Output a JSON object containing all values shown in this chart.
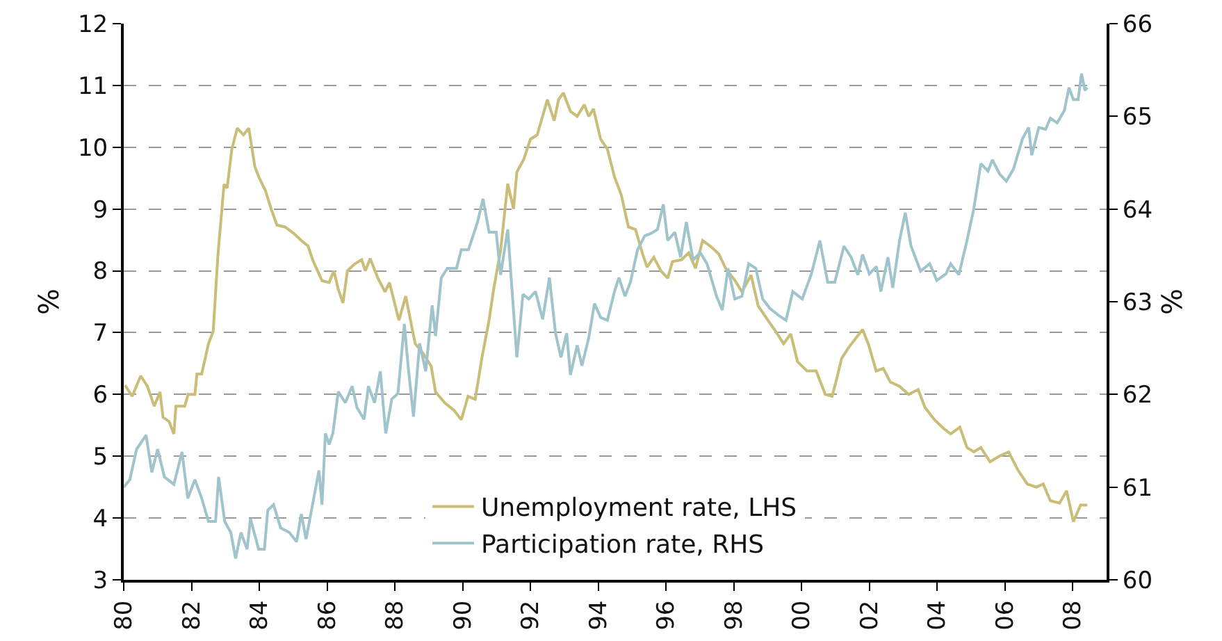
{
  "chart_data": {
    "type": "line",
    "ylabel": "%",
    "y2label": "%",
    "xlim": [
      1980,
      2009
    ],
    "xticks": [
      {
        "value": 1980,
        "label": "80"
      },
      {
        "value": 1982,
        "label": "82"
      },
      {
        "value": 1984,
        "label": "84"
      },
      {
        "value": 1986,
        "label": "86"
      },
      {
        "value": 1988,
        "label": "88"
      },
      {
        "value": 1990,
        "label": "90"
      },
      {
        "value": 1992,
        "label": "92"
      },
      {
        "value": 1994,
        "label": "94"
      },
      {
        "value": 1996,
        "label": "96"
      },
      {
        "value": 1998,
        "label": "98"
      },
      {
        "value": 2000,
        "label": "00"
      },
      {
        "value": 2002,
        "label": "02"
      },
      {
        "value": 2004,
        "label": "04"
      },
      {
        "value": 2006,
        "label": "06"
      },
      {
        "value": 2008,
        "label": "08"
      }
    ],
    "ylim": [
      3,
      12
    ],
    "yticks": [
      3,
      4,
      5,
      6,
      7,
      8,
      9,
      10,
      11,
      12
    ],
    "y2lim": [
      60,
      66
    ],
    "y2ticks": [
      60,
      61,
      62,
      63,
      64,
      65,
      66
    ],
    "grid": "y",
    "legend": "bottom",
    "marker": "none",
    "line_style": "solid",
    "series": [
      {
        "name": "Unemployment rate, LHS",
        "color": "#c9bd78",
        "x": [
          1980.04,
          1980.25,
          1980.5,
          1980.7,
          1980.9,
          1981.07,
          1981.16,
          1981.34,
          1981.48,
          1981.54,
          1981.8,
          1981.9,
          1982.1,
          1982.16,
          1982.3,
          1982.5,
          1982.64,
          1982.78,
          1982.96,
          1983.05,
          1983.19,
          1983.35,
          1983.53,
          1983.69,
          1983.87,
          1984.0,
          1984.18,
          1984.35,
          1984.52,
          1984.76,
          1985.03,
          1985.24,
          1985.44,
          1985.58,
          1985.85,
          1986.06,
          1986.2,
          1986.33,
          1986.47,
          1986.6,
          1986.81,
          1987.02,
          1987.13,
          1987.27,
          1987.5,
          1987.71,
          1987.84,
          1988.12,
          1988.32,
          1988.46,
          1988.6,
          1988.8,
          1989.07,
          1989.2,
          1989.48,
          1989.75,
          1989.96,
          1990.16,
          1990.37,
          1990.57,
          1990.78,
          1990.92,
          1991.12,
          1991.33,
          1991.5,
          1991.6,
          1991.8,
          1992.0,
          1992.2,
          1992.5,
          1992.7,
          1992.83,
          1992.97,
          1993.18,
          1993.38,
          1993.59,
          1993.72,
          1993.86,
          1994.07,
          1994.27,
          1994.48,
          1994.68,
          1994.89,
          1995.1,
          1995.3,
          1995.44,
          1995.64,
          1995.85,
          1996.05,
          1996.19,
          1996.46,
          1996.67,
          1996.87,
          1997.08,
          1997.35,
          1997.56,
          1997.76,
          1998.04,
          1998.24,
          1998.51,
          1998.72,
          1998.92,
          1999.2,
          1999.47,
          1999.68,
          1999.88,
          2000.16,
          2000.43,
          2000.7,
          2000.9,
          2001.04,
          2001.18,
          2001.39,
          2001.6,
          2001.8,
          2001.98,
          2002.2,
          2002.41,
          2002.62,
          2002.89,
          2003.16,
          2003.44,
          2003.64,
          2003.92,
          2004.19,
          2004.4,
          2004.67,
          2004.88,
          2005.08,
          2005.29,
          2005.56,
          2005.83,
          2006.11,
          2006.38,
          2006.66,
          2006.93,
          2007.13,
          2007.34,
          2007.61,
          2007.82,
          2008.02,
          2008.23,
          2008.43
        ],
        "values": [
          6.15,
          5.97,
          6.3,
          6.13,
          5.81,
          6.04,
          5.63,
          5.56,
          5.36,
          5.81,
          5.81,
          6.0,
          6.0,
          6.33,
          6.33,
          6.82,
          7.02,
          8.26,
          9.4,
          9.34,
          9.97,
          10.31,
          10.2,
          10.31,
          9.68,
          9.5,
          9.3,
          9.0,
          8.74,
          8.71,
          8.6,
          8.49,
          8.4,
          8.17,
          7.84,
          7.81,
          8.0,
          7.7,
          7.48,
          8.0,
          8.11,
          8.18,
          8.0,
          8.2,
          7.88,
          7.66,
          7.81,
          7.2,
          7.59,
          7.2,
          6.82,
          6.69,
          6.46,
          6.04,
          5.86,
          5.74,
          5.59,
          5.97,
          5.92,
          6.6,
          7.2,
          7.72,
          8.33,
          9.41,
          9.0,
          9.6,
          9.8,
          10.13,
          10.2,
          10.77,
          10.43,
          10.77,
          10.88,
          10.58,
          10.5,
          10.69,
          10.5,
          10.62,
          10.13,
          9.97,
          9.52,
          9.23,
          8.71,
          8.67,
          8.29,
          8.06,
          8.22,
          8.0,
          7.88,
          8.15,
          8.18,
          8.29,
          8.04,
          8.49,
          8.38,
          8.27,
          8.04,
          7.84,
          7.66,
          7.93,
          7.43,
          7.27,
          7.05,
          6.82,
          6.98,
          6.53,
          6.38,
          6.38,
          6.0,
          5.97,
          6.26,
          6.58,
          6.76,
          6.91,
          7.05,
          6.8,
          6.38,
          6.42,
          6.2,
          6.13,
          6.0,
          6.08,
          5.79,
          5.59,
          5.45,
          5.36,
          5.47,
          5.14,
          5.07,
          5.14,
          4.91,
          5.0,
          5.07,
          4.78,
          4.55,
          4.5,
          4.55,
          4.28,
          4.24,
          4.44,
          3.94,
          4.21,
          4.21
        ]
      },
      {
        "name": "Participation rate, RHS",
        "color": "#9fc4cb",
        "axis": "y2",
        "x": [
          1980.0,
          1980.18,
          1980.38,
          1980.66,
          1980.83,
          1981.0,
          1981.2,
          1981.48,
          1981.72,
          1981.89,
          1982.1,
          1982.3,
          1982.5,
          1982.71,
          1982.8,
          1982.98,
          1983.16,
          1983.3,
          1983.46,
          1983.64,
          1983.74,
          1983.98,
          1984.15,
          1984.25,
          1984.42,
          1984.63,
          1984.89,
          1985.1,
          1985.24,
          1985.38,
          1985.54,
          1985.76,
          1985.85,
          1985.95,
          1986.06,
          1986.17,
          1986.33,
          1986.54,
          1986.74,
          1986.88,
          1987.09,
          1987.22,
          1987.4,
          1987.57,
          1987.73,
          1987.91,
          1988.09,
          1988.28,
          1988.39,
          1988.55,
          1988.73,
          1988.91,
          1989.1,
          1989.2,
          1989.37,
          1989.55,
          1989.82,
          1989.96,
          1990.17,
          1990.44,
          1990.6,
          1990.78,
          1990.99,
          1991.12,
          1991.33,
          1991.47,
          1991.6,
          1991.78,
          1991.95,
          1992.15,
          1992.36,
          1992.56,
          1992.74,
          1992.9,
          1993.07,
          1993.18,
          1993.38,
          1993.52,
          1993.72,
          1993.89,
          1994.07,
          1994.27,
          1994.48,
          1994.61,
          1994.79,
          1994.95,
          1995.16,
          1995.37,
          1995.57,
          1995.75,
          1995.92,
          1996.05,
          1996.26,
          1996.43,
          1996.6,
          1996.8,
          1997.01,
          1997.21,
          1997.49,
          1997.66,
          1997.83,
          1998.03,
          1998.24,
          1998.44,
          1998.65,
          1998.85,
          1999.06,
          1999.33,
          1999.54,
          1999.74,
          2000.02,
          2000.29,
          2000.54,
          2000.77,
          2000.98,
          2001.25,
          2001.46,
          2001.66,
          2001.8,
          2002.0,
          2002.21,
          2002.34,
          2002.55,
          2002.69,
          2002.89,
          2003.06,
          2003.23,
          2003.51,
          2003.78,
          2003.99,
          2004.26,
          2004.4,
          2004.64,
          2004.88,
          2005.08,
          2005.29,
          2005.5,
          2005.63,
          2005.84,
          2006.04,
          2006.25,
          2006.52,
          2006.7,
          2006.79,
          2007.0,
          2007.2,
          2007.34,
          2007.54,
          2007.75,
          2007.89,
          2008.02,
          2008.16,
          2008.26,
          2008.36,
          2008.43
        ],
        "values": [
          61.0,
          61.08,
          61.41,
          61.56,
          61.16,
          61.41,
          61.11,
          61.03,
          61.38,
          60.88,
          61.08,
          60.88,
          60.63,
          60.63,
          61.11,
          60.63,
          60.51,
          60.23,
          60.51,
          60.33,
          60.66,
          60.33,
          60.33,
          60.75,
          60.81,
          60.56,
          60.51,
          60.41,
          60.71,
          60.44,
          60.75,
          61.18,
          60.81,
          61.58,
          61.46,
          61.58,
          62.03,
          61.91,
          62.09,
          61.86,
          61.73,
          62.09,
          61.91,
          62.25,
          61.58,
          61.95,
          62.01,
          62.76,
          62.31,
          61.76,
          62.55,
          62.25,
          62.96,
          62.63,
          63.26,
          63.36,
          63.36,
          63.56,
          63.56,
          63.86,
          64.11,
          63.75,
          63.75,
          63.29,
          63.78,
          63.06,
          62.4,
          63.08,
          63.03,
          63.11,
          62.81,
          63.26,
          62.66,
          62.4,
          62.66,
          62.21,
          62.53,
          62.31,
          62.61,
          62.98,
          62.83,
          62.8,
          63.11,
          63.26,
          63.06,
          63.21,
          63.56,
          63.71,
          63.74,
          63.78,
          64.05,
          63.66,
          63.75,
          63.48,
          63.86,
          63.45,
          63.53,
          63.41,
          63.06,
          62.91,
          63.36,
          63.03,
          63.06,
          63.41,
          63.36,
          63.03,
          62.93,
          62.85,
          62.8,
          63.11,
          63.03,
          63.3,
          63.66,
          63.21,
          63.21,
          63.6,
          63.48,
          63.29,
          63.51,
          63.3,
          63.38,
          63.11,
          63.48,
          63.15,
          63.66,
          63.96,
          63.6,
          63.33,
          63.41,
          63.23,
          63.3,
          63.41,
          63.29,
          63.66,
          64.0,
          64.49,
          64.41,
          64.53,
          64.38,
          64.3,
          64.43,
          64.76,
          64.88,
          64.58,
          64.88,
          64.86,
          64.98,
          64.93,
          65.06,
          65.31,
          65.18,
          65.18,
          65.46,
          65.28,
          65.31
        ]
      }
    ]
  }
}
